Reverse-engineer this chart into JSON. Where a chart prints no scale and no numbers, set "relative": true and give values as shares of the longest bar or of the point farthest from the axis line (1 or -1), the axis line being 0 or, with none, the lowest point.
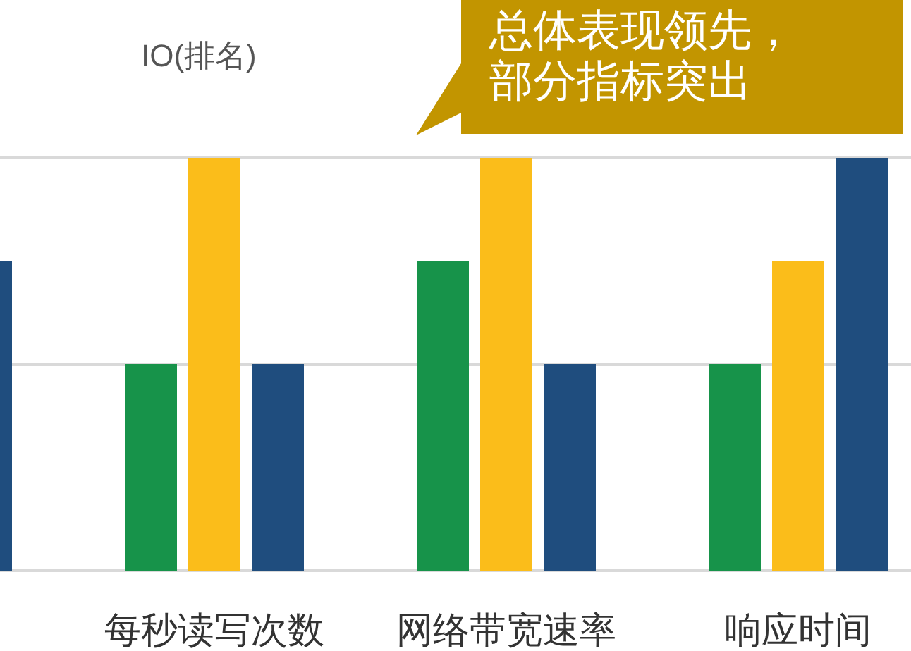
{
  "chart_data": {
    "type": "bar",
    "relative": true,
    "title": "IO(排名)",
    "categories": [
      null,
      "每秒读写次数",
      "网络带宽速率",
      "响应时间"
    ],
    "series": [
      {
        "color": "#17934a",
        "values": [
          null,
          0.5,
          0.75,
          0.5
        ]
      },
      {
        "color": "#fbbd1a",
        "values": [
          null,
          1,
          1,
          0.75
        ]
      },
      {
        "color": "#1f4d7e",
        "values": [
          0.75,
          0.5,
          0.5,
          1
        ]
      }
    ],
    "annotations": [
      "总体表现领先，",
      "部分指标突出"
    ],
    "ref_lines": [
      {
        "axis": "y",
        "value": 0.5,
        "color": "#d9d9d9"
      },
      {
        "axis": "y",
        "value": 1,
        "color": "#d9d9d9"
      }
    ]
  }
}
